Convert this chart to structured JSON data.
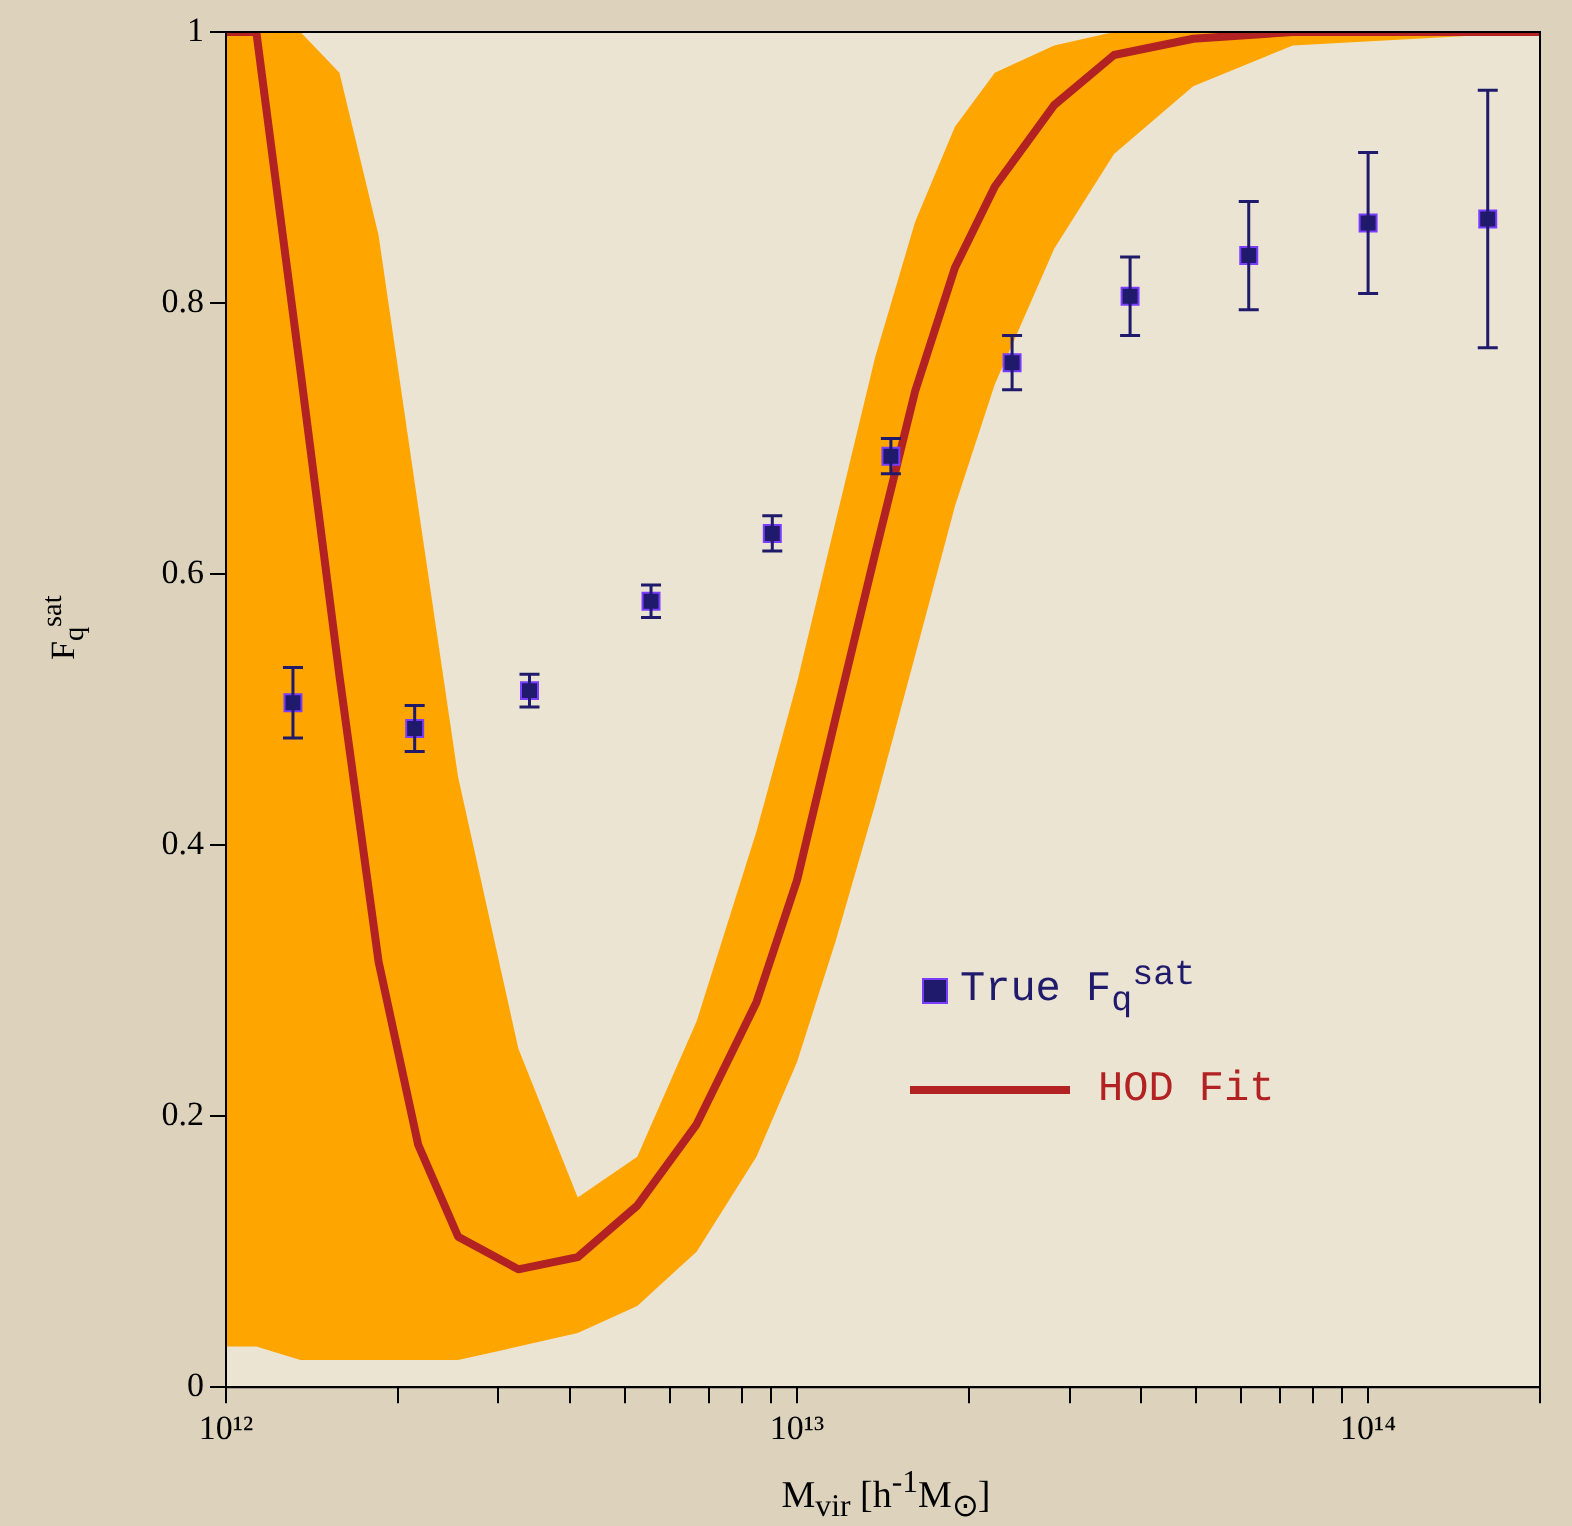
{
  "chart_data": {
    "type": "line",
    "xlabel": "M$_{vir}$ [h$^{-1}$M$_{⊙}$]",
    "ylabel": "F$_{q}$$^{sat}$",
    "log": "x",
    "grid": false,
    "legend": "right",
    "xlim": [
      1000000000000.0,
      200000000000000.0
    ],
    "xticks": [
      {
        "value": 1000000000000.0,
        "label": "10¹²"
      },
      {
        "value": 2000000000000.0,
        "label": null
      },
      {
        "value": 3000000000000.0,
        "label": null
      },
      {
        "value": 4000000000000.0,
        "label": null
      },
      {
        "value": 5000000000000.0,
        "label": null
      },
      {
        "value": 6000000000000.0,
        "label": null
      },
      {
        "value": 7000000000000.0,
        "label": null
      },
      {
        "value": 8000000000000.0,
        "label": null
      },
      {
        "value": 9000000000000.0,
        "label": null
      },
      {
        "value": 10000000000000.0,
        "label": "10¹³"
      },
      {
        "value": 20000000000000.0,
        "label": null
      },
      {
        "value": 30000000000000.0,
        "label": null
      },
      {
        "value": 40000000000000.0,
        "label": null
      },
      {
        "value": 50000000000000.0,
        "label": null
      },
      {
        "value": 60000000000000.0,
        "label": null
      },
      {
        "value": 70000000000000.0,
        "label": null
      },
      {
        "value": 80000000000000.0,
        "label": null
      },
      {
        "value": 90000000000000.0,
        "label": null
      },
      {
        "value": 100000000000000.0,
        "label": "10¹⁴"
      },
      {
        "value": 200000000000000.0,
        "label": null
      }
    ],
    "ylim": [
      0,
      1
    ],
    "yticks": [
      0,
      0.2,
      0.4,
      0.6,
      0.8,
      1
    ],
    "series": [
      {
        "type": "line",
        "color": "#ffa500",
        "x": [
          1000000000000.0,
          1130000000000.0,
          1350000000000.0,
          1580000000000.0,
          1850000000000.0,
          2170000000000.0,
          2550000000000.0,
          3250000000000.0,
          4130000000000.0,
          5250000000000.0,
          6670000000000.0,
          8490000000000.0,
          10000000000000.0,
          11700000000000.0,
          13700000000000.0,
          16100000000000.0,
          18900000000000.0,
          22200000000000.0,
          28200000000000.0,
          35900000000000.0,
          49400000000000.0,
          73800000000000.0,
          200000000000000.0
        ],
        "values": [
          null,
          null,
          null,
          null,
          null,
          null,
          null,
          null,
          null,
          null,
          null,
          null,
          null,
          null,
          null,
          null,
          null,
          null,
          null,
          null,
          null,
          null,
          null
        ],
        "lower": [
          0.03,
          0.03,
          0.02,
          0.02,
          0.02,
          0.02,
          0.02,
          0.03,
          0.04,
          0.06,
          0.1,
          0.17,
          0.24,
          0.33,
          0.43,
          0.54,
          0.65,
          0.74,
          0.84,
          0.91,
          0.96,
          0.99,
          1
        ],
        "upper": [
          1,
          1,
          1,
          0.97,
          0.85,
          0.65,
          0.45,
          0.25,
          0.14,
          0.17,
          0.27,
          0.41,
          0.52,
          0.64,
          0.76,
          0.86,
          0.93,
          0.97,
          0.99,
          1,
          1,
          1,
          1
        ]
      },
      {
        "name": "HOD Fit",
        "color": "#b22222",
        "marker": "none",
        "x": [
          1000000000000.0,
          1130000000000.0,
          1350000000000.0,
          1580000000000.0,
          1850000000000.0,
          2170000000000.0,
          2550000000000.0,
          3250000000000.0,
          4130000000000.0,
          5250000000000.0,
          6670000000000.0,
          8490000000000.0,
          10000000000000.0,
          11700000000000.0,
          13700000000000.0,
          16100000000000.0,
          18900000000000.0,
          22200000000000.0,
          28200000000000.0,
          35900000000000.0,
          49400000000000.0,
          73800000000000.0,
          200000000000000.0
        ],
        "values": [
          1,
          1,
          0.75,
          0.525,
          0.314,
          0.179,
          0.111,
          0.087,
          0.096,
          0.134,
          0.194,
          0.284,
          0.374,
          0.495,
          0.615,
          0.735,
          0.826,
          0.886,
          0.946,
          0.983,
          0.995,
          1,
          1
        ]
      },
      {
        "name": "True F$_{q}$$^{sat}$",
        "type": "scatter",
        "color": "#1f1a6b",
        "marker": "square",
        "x": [
          1310000000000.0,
          2140000000000.0,
          3400000000000.0,
          5550000000000.0,
          9050000000000.0,
          14600000000000.0,
          23800000000000.0,
          38300000000000.0,
          61800000000000.0,
          100000000000000.0,
          162000000000000.0
        ],
        "values": [
          0.505,
          0.486,
          0.514,
          0.58,
          0.63,
          0.687,
          0.756,
          0.805,
          0.835,
          0.859,
          0.862
        ],
        "errors": [
          0.026,
          0.017,
          0.012,
          0.012,
          0.013,
          0.013,
          0.02,
          0.029,
          0.04,
          0.052,
          0.095
        ]
      }
    ]
  }
}
